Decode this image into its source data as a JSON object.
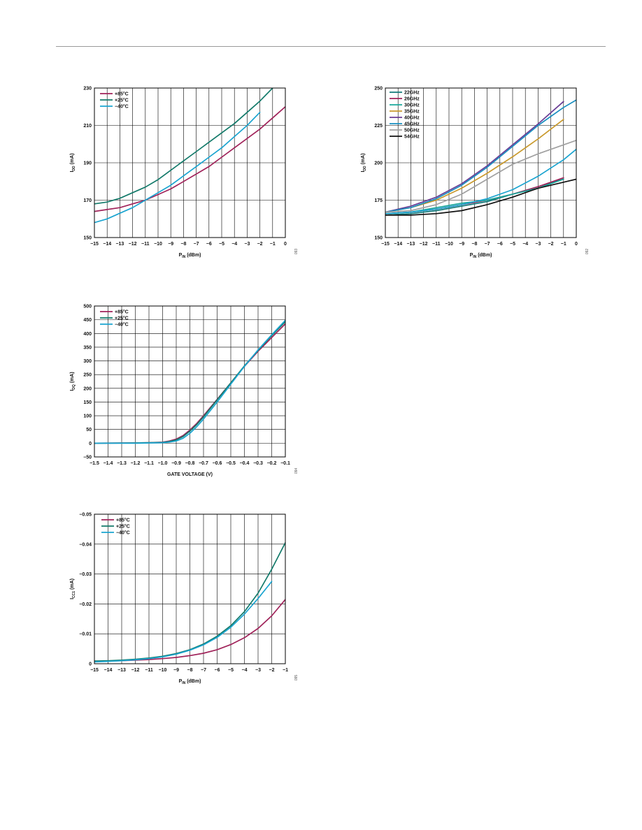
{
  "charts": [
    {
      "id": "chart1",
      "type": "line",
      "ylabel": "I",
      "ylabel_sub": "DD",
      "ylabel_suffix": " (mA)",
      "xlabel": "P",
      "xlabel_sub": "IN",
      "xlabel_suffix": " (dBm)",
      "xlim": [
        -15,
        0
      ],
      "ylim": [
        150,
        230
      ],
      "xticks": [
        "−15",
        "−14",
        "−13",
        "−12",
        "−11",
        "−10",
        "−9",
        "−8",
        "−7",
        "−6",
        "−5",
        "−4",
        "−3",
        "−2",
        "−1",
        "0"
      ],
      "yticks": [
        "150",
        "170",
        "190",
        "210",
        "230"
      ],
      "fig_id": "093",
      "series": [
        {
          "name": "+85°C",
          "color": "#a0235a",
          "x": [
            -15,
            -14,
            -13,
            -12,
            -11,
            -10,
            -9,
            -8,
            -7,
            -6,
            -5,
            -4,
            -3,
            -2,
            -1,
            0
          ],
          "y": [
            164,
            165,
            166,
            168,
            170,
            173,
            176,
            180,
            184,
            188,
            193,
            198,
            203,
            208,
            214,
            220
          ]
        },
        {
          "name": "+25°C",
          "color": "#137a6a",
          "x": [
            -15,
            -14,
            -13,
            -12,
            -11,
            -10,
            -9,
            -8,
            -7,
            -6,
            -5,
            -4,
            -3,
            -2,
            -1
          ],
          "y": [
            168,
            169,
            171,
            174,
            177,
            181,
            186,
            191,
            196,
            201,
            206,
            211,
            217,
            223,
            230
          ]
        },
        {
          "name": "−40°C",
          "color": "#1aa4d0",
          "x": [
            -15,
            -14,
            -13,
            -12,
            -11,
            -10,
            -9,
            -8,
            -7,
            -6,
            -5,
            -4,
            -3,
            -2
          ],
          "y": [
            158,
            160,
            163,
            166,
            170,
            174,
            178,
            183,
            188,
            193,
            198,
            204,
            210,
            217
          ]
        }
      ]
    },
    {
      "id": "chart2",
      "type": "line",
      "ylabel": "I",
      "ylabel_sub": "DD",
      "ylabel_suffix": " (mA)",
      "xlabel": "P",
      "xlabel_sub": "IN",
      "xlabel_suffix": " (dBm)",
      "xlim": [
        -15,
        0
      ],
      "ylim": [
        150,
        250
      ],
      "xticks": [
        "−15",
        "−14",
        "−13",
        "−12",
        "−11",
        "−10",
        "−9",
        "−8",
        "−7",
        "−6",
        "−5",
        "−4",
        "−3",
        "−2",
        "−1",
        "0"
      ],
      "yticks": [
        "150",
        "175",
        "200",
        "225",
        "250"
      ],
      "fig_id": "092",
      "series": [
        {
          "name": "22GHz",
          "color": "#127a7a",
          "x": [
            -15,
            -13,
            -11,
            -9,
            -7,
            -5,
            -3,
            -1
          ],
          "y": [
            165,
            166,
            168,
            171,
            174,
            179,
            184,
            189
          ]
        },
        {
          "name": "26GHz",
          "color": "#a0235a",
          "x": [
            -15,
            -13,
            -11,
            -9,
            -7,
            -5,
            -3,
            -1
          ],
          "y": [
            166,
            167,
            169,
            172,
            175,
            179,
            184,
            190
          ]
        },
        {
          "name": "30GHz",
          "color": "#1aa89c",
          "x": [
            -15,
            -13,
            -11,
            -9,
            -7,
            -5,
            -3,
            -1
          ],
          "y": [
            166,
            167,
            170,
            173,
            175,
            179,
            183,
            189
          ]
        },
        {
          "name": "35GHz",
          "color": "#c99a2e",
          "x": [
            -15,
            -13,
            -11,
            -9,
            -7,
            -5,
            -3,
            -1
          ],
          "y": [
            167,
            170,
            175,
            183,
            193,
            204,
            216,
            229
          ]
        },
        {
          "name": "40GHz",
          "color": "#6a3d95",
          "x": [
            -15,
            -13,
            -11,
            -9,
            -7,
            -5,
            -3,
            -1
          ],
          "y": [
            167,
            171,
            177,
            186,
            198,
            212,
            226,
            241
          ]
        },
        {
          "name": "45GHz",
          "color": "#1a8fc0",
          "x": [
            -15,
            -13,
            -11,
            -9,
            -7,
            -5,
            -3,
            -1,
            0
          ],
          "y": [
            167,
            170,
            176,
            185,
            197,
            211,
            225,
            237,
            242
          ]
        },
        {
          "name": "50GHz",
          "color": "#a0a0a0",
          "x": [
            -15,
            -13,
            -11,
            -9,
            -7,
            -5,
            -3,
            -1,
            0
          ],
          "y": [
            167,
            168,
            172,
            179,
            189,
            199,
            206,
            212,
            215
          ]
        },
        {
          "name": "54GHz",
          "color": "#111111",
          "x": [
            -15,
            -13,
            -11,
            -9,
            -7,
            -5,
            -3,
            -1,
            0
          ],
          "y": [
            165,
            165,
            166,
            168,
            172,
            177,
            183,
            187,
            189
          ]
        },
        {
          "name": "",
          "color": "#1aa4d0",
          "x": [
            -15,
            -13,
            -11,
            -9,
            -7,
            -5,
            -3,
            -1,
            0
          ],
          "y": [
            166,
            167,
            169,
            172,
            176,
            182,
            191,
            202,
            209
          ]
        }
      ]
    },
    {
      "id": "chart3",
      "type": "line",
      "ylabel": "I",
      "ylabel_sub": "DQ",
      "ylabel_suffix": " (mA)",
      "xlabel": "GATE VOLTAGE (V)",
      "xlabel_sub": "",
      "xlabel_suffix": "",
      "xlim": [
        -1.5,
        -0.1
      ],
      "ylim": [
        -50,
        500
      ],
      "xticks": [
        "−1.5",
        "−1.4",
        "−1.3",
        "−1.2",
        "−1.1",
        "−1.0",
        "−0.9",
        "−0.8",
        "−0.7",
        "−0.6",
        "−0.5",
        "−0.4",
        "−0.3",
        "−0.2",
        "−0.1"
      ],
      "yticks": [
        "−50",
        "0",
        "50",
        "100",
        "150",
        "200",
        "250",
        "300",
        "350",
        "400",
        "450",
        "500"
      ],
      "fig_id": "094",
      "series": [
        {
          "name": "+85°C",
          "color": "#a0235a",
          "x": [
            -1.5,
            -1.2,
            -1.1,
            -1.0,
            -0.95,
            -0.9,
            -0.85,
            -0.8,
            -0.75,
            -0.7,
            -0.6,
            -0.5,
            -0.4,
            -0.3,
            -0.2,
            -0.1
          ],
          "y": [
            0,
            1,
            2,
            4,
            8,
            15,
            28,
            48,
            72,
            100,
            160,
            220,
            280,
            335,
            385,
            435
          ]
        },
        {
          "name": "+25°C",
          "color": "#137a6a",
          "x": [
            -1.5,
            -1.2,
            -1.1,
            -1.0,
            -0.95,
            -0.9,
            -0.85,
            -0.8,
            -0.75,
            -0.7,
            -0.6,
            -0.5,
            -0.4,
            -0.3,
            -0.2,
            -0.1
          ],
          "y": [
            0,
            1,
            2,
            3,
            6,
            12,
            24,
            44,
            68,
            96,
            158,
            220,
            282,
            338,
            392,
            443
          ]
        },
        {
          "name": "−40°C",
          "color": "#1aa4d0",
          "x": [
            -1.5,
            -1.2,
            -1.1,
            -1.0,
            -0.95,
            -0.9,
            -0.85,
            -0.8,
            -0.75,
            -0.7,
            -0.6,
            -0.5,
            -0.4,
            -0.3,
            -0.2,
            -0.1
          ],
          "y": [
            0,
            0,
            1,
            2,
            4,
            8,
            18,
            36,
            60,
            88,
            150,
            215,
            280,
            340,
            395,
            448
          ]
        }
      ]
    },
    {
      "id": "chart4",
      "type": "line",
      "ylabel": "I",
      "ylabel_sub": "CC1",
      "ylabel_suffix": " (mA)",
      "xlabel": "P",
      "xlabel_sub": "IN",
      "xlabel_suffix": " (dBm)",
      "xlim": [
        -15,
        -1
      ],
      "ylim": [
        0,
        -0.05
      ],
      "xticks": [
        "−15",
        "−14",
        "−13",
        "−12",
        "−11",
        "−10",
        "−9",
        "−8",
        "−7",
        "−6",
        "−5",
        "−4",
        "−3",
        "−2",
        "−1"
      ],
      "yticks": [
        "0",
        "−0.01",
        "−0.02",
        "−0.03",
        "−0.04",
        "−0.05"
      ],
      "fig_id": "095",
      "series": [
        {
          "name": "+85°C",
          "color": "#a0235a",
          "x": [
            -15,
            -14,
            -13,
            -12,
            -11,
            -10,
            -9,
            -8,
            -7,
            -6,
            -5,
            -4,
            -3,
            -2,
            -1
          ],
          "y": [
            -0.0008,
            -0.0009,
            -0.001,
            -0.0012,
            -0.0014,
            -0.0017,
            -0.0021,
            -0.0027,
            -0.0035,
            -0.0047,
            -0.0064,
            -0.0087,
            -0.0118,
            -0.016,
            -0.0215
          ]
        },
        {
          "name": "+25°C",
          "color": "#137a6a",
          "x": [
            -15,
            -14,
            -13,
            -12,
            -11,
            -10,
            -9,
            -8,
            -7,
            -6,
            -5,
            -4,
            -3,
            -2,
            -1
          ],
          "y": [
            -0.0009,
            -0.001,
            -0.0012,
            -0.0015,
            -0.0019,
            -0.0025,
            -0.0034,
            -0.0047,
            -0.0066,
            -0.0092,
            -0.0127,
            -0.0174,
            -0.0236,
            -0.0316,
            -0.0405
          ]
        },
        {
          "name": "−40°C",
          "color": "#1aa4d0",
          "x": [
            -15,
            -14,
            -13,
            -12,
            -11,
            -10,
            -9,
            -8,
            -7,
            -6,
            -5,
            -4,
            -3,
            -2
          ],
          "y": [
            -0.0006,
            -0.0008,
            -0.001,
            -0.0013,
            -0.0017,
            -0.0023,
            -0.0032,
            -0.0045,
            -0.0063,
            -0.0088,
            -0.0122,
            -0.0166,
            -0.0218,
            -0.0275
          ]
        }
      ]
    }
  ]
}
